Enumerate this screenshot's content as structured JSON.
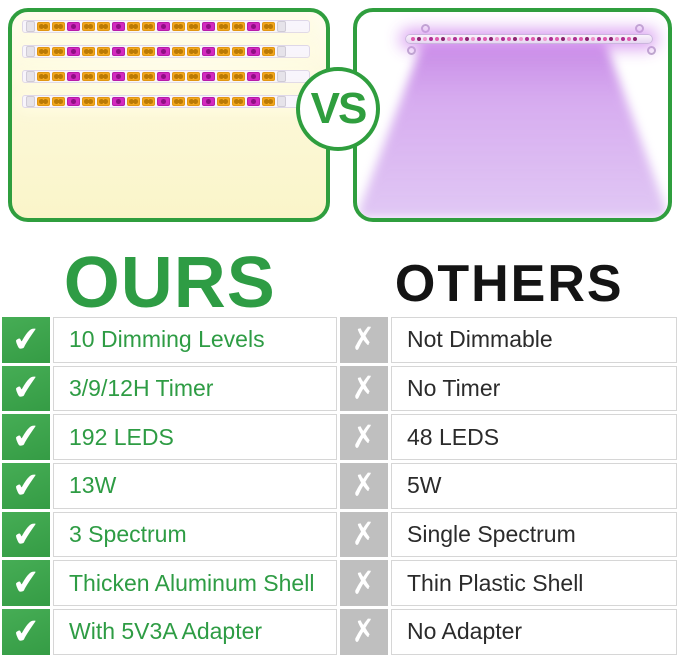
{
  "colors": {
    "green_border": "#2f9e3e",
    "green_check": "#3aa44b",
    "green_text": "#2e9c44",
    "gray_cross": "#bfbfbf",
    "others_text": "#2b2b2b",
    "warm_glow": "#fbf6cd",
    "purple_glow": "#cf9ce9"
  },
  "vs_badge": {
    "label": "VS"
  },
  "headings": {
    "ours": "OURS",
    "others": "OTHERS"
  },
  "panels": {
    "ours": {
      "alt": "four warm full-spectrum LED strip lights glowing warm white",
      "strip_count": 4,
      "chip_pattern": "ooMooMooMooMooMo"
    },
    "others": {
      "alt": "single purple LED bar casting purple light",
      "dot_count": 38
    }
  },
  "comparison": {
    "check_glyph": "✔",
    "cross_glyph": "✗",
    "rows": [
      {
        "ours": "10 Dimming Levels",
        "others": "Not Dimmable"
      },
      {
        "ours": "3/9/12H Timer",
        "others": "No Timer"
      },
      {
        "ours": "192 LEDS",
        "others": "48 LEDS"
      },
      {
        "ours": "13W",
        "others": "5W"
      },
      {
        "ours": "3 Spectrum",
        "others": "Single Spectrum"
      },
      {
        "ours": "Thicken Aluminum Shell",
        "others": "Thin Plastic Shell"
      },
      {
        "ours": "With 5V3A Adapter",
        "others": "No Adapter"
      }
    ]
  }
}
